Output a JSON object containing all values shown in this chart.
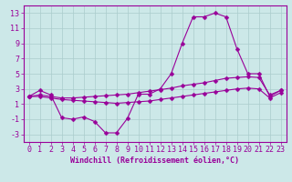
{
  "title": "",
  "xlabel": "Windchill (Refroidissement éolien,°C)",
  "ylabel": "",
  "bg_color": "#cce8e8",
  "grid_color": "#aacccc",
  "line_color": "#990099",
  "x": [
    0,
    1,
    2,
    3,
    4,
    5,
    6,
    7,
    8,
    9,
    10,
    11,
    12,
    13,
    14,
    15,
    16,
    17,
    18,
    19,
    20,
    21,
    22,
    23
  ],
  "line1": [
    2.0,
    2.8,
    2.2,
    -0.8,
    -1.0,
    -0.7,
    -1.3,
    -2.8,
    -2.8,
    -0.9,
    2.3,
    2.3,
    3.0,
    5.0,
    9.0,
    12.5,
    12.5,
    13.0,
    12.5,
    8.3,
    5.0,
    5.0,
    2.0,
    2.8
  ],
  "line2": [
    2.0,
    2.2,
    2.0,
    1.8,
    1.8,
    1.9,
    2.0,
    2.1,
    2.2,
    2.3,
    2.5,
    2.7,
    2.9,
    3.1,
    3.4,
    3.6,
    3.8,
    4.1,
    4.4,
    4.5,
    4.6,
    4.5,
    2.2,
    2.8
  ],
  "line3": [
    2.0,
    2.0,
    1.8,
    1.6,
    1.5,
    1.4,
    1.3,
    1.2,
    1.1,
    1.2,
    1.3,
    1.4,
    1.6,
    1.8,
    2.0,
    2.2,
    2.4,
    2.6,
    2.8,
    3.0,
    3.1,
    3.0,
    1.8,
    2.5
  ],
  "ylim": [
    -4,
    14
  ],
  "yticks": [
    -3,
    -1,
    1,
    3,
    5,
    7,
    9,
    11,
    13
  ],
  "xlim": [
    -0.5,
    23.5
  ],
  "xlabel_fontsize": 6,
  "tick_fontsize": 6
}
